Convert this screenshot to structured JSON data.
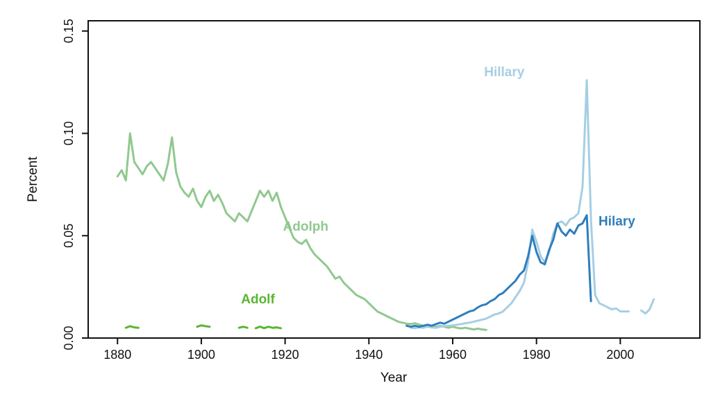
{
  "figure": {
    "background": "#ffffff",
    "axis_color": "#111111"
  },
  "chart_data": {
    "type": "line",
    "title": "",
    "xlabel": "Year",
    "ylabel": "Percent",
    "xlim": [
      1873,
      2019
    ],
    "ylim": [
      0,
      0.155
    ],
    "grid": false,
    "legend_position": "inline-annotations",
    "x_ticks": [
      {
        "v": 1880,
        "label": "1880"
      },
      {
        "v": 1900,
        "label": "1900"
      },
      {
        "v": 1920,
        "label": "1920"
      },
      {
        "v": 1940,
        "label": "1940"
      },
      {
        "v": 1960,
        "label": "1960"
      },
      {
        "v": 1980,
        "label": "1980"
      },
      {
        "v": 2000,
        "label": "2000"
      }
    ],
    "y_ticks": [
      {
        "v": 0.0,
        "label": "0.00"
      },
      {
        "v": 0.05,
        "label": "0.05"
      },
      {
        "v": 0.1,
        "label": "0.10"
      },
      {
        "v": 0.15,
        "label": "0.15"
      }
    ],
    "series": [
      {
        "name": "Adolph",
        "color": "#90c88f",
        "width": 3,
        "segments": [
          [
            [
              1880,
              0.079
            ],
            [
              1881,
              0.082
            ],
            [
              1882,
              0.077
            ],
            [
              1883,
              0.1
            ],
            [
              1884,
              0.086
            ],
            [
              1885,
              0.083
            ],
            [
              1886,
              0.08
            ],
            [
              1887,
              0.084
            ],
            [
              1888,
              0.086
            ],
            [
              1889,
              0.083
            ],
            [
              1890,
              0.08
            ],
            [
              1891,
              0.077
            ],
            [
              1892,
              0.085
            ],
            [
              1893,
              0.098
            ],
            [
              1894,
              0.081
            ],
            [
              1895,
              0.074
            ],
            [
              1896,
              0.071
            ],
            [
              1897,
              0.069
            ],
            [
              1898,
              0.073
            ],
            [
              1899,
              0.067
            ],
            [
              1900,
              0.064
            ],
            [
              1901,
              0.069
            ],
            [
              1902,
              0.072
            ],
            [
              1903,
              0.067
            ],
            [
              1904,
              0.07
            ],
            [
              1905,
              0.066
            ],
            [
              1906,
              0.061
            ],
            [
              1907,
              0.059
            ],
            [
              1908,
              0.057
            ],
            [
              1909,
              0.061
            ],
            [
              1910,
              0.059
            ],
            [
              1911,
              0.057
            ],
            [
              1912,
              0.062
            ],
            [
              1913,
              0.067
            ],
            [
              1914,
              0.072
            ],
            [
              1915,
              0.069
            ],
            [
              1916,
              0.072
            ],
            [
              1917,
              0.067
            ],
            [
              1918,
              0.071
            ],
            [
              1919,
              0.064
            ],
            [
              1920,
              0.059
            ],
            [
              1921,
              0.054
            ],
            [
              1922,
              0.049
            ],
            [
              1923,
              0.047
            ],
            [
              1924,
              0.046
            ],
            [
              1925,
              0.048
            ],
            [
              1926,
              0.044
            ],
            [
              1927,
              0.041
            ],
            [
              1928,
              0.039
            ],
            [
              1929,
              0.037
            ],
            [
              1930,
              0.035
            ],
            [
              1931,
              0.032
            ],
            [
              1932,
              0.029
            ],
            [
              1933,
              0.03
            ],
            [
              1934,
              0.027
            ],
            [
              1935,
              0.025
            ],
            [
              1936,
              0.023
            ],
            [
              1937,
              0.021
            ],
            [
              1938,
              0.02
            ],
            [
              1939,
              0.019
            ],
            [
              1940,
              0.017
            ],
            [
              1941,
              0.015
            ],
            [
              1942,
              0.013
            ],
            [
              1943,
              0.012
            ],
            [
              1944,
              0.011
            ],
            [
              1945,
              0.01
            ],
            [
              1946,
              0.009
            ],
            [
              1947,
              0.008
            ],
            [
              1948,
              0.0075
            ],
            [
              1949,
              0.007
            ],
            [
              1950,
              0.0068
            ],
            [
              1951,
              0.0072
            ],
            [
              1952,
              0.0066
            ],
            [
              1953,
              0.006
            ],
            [
              1954,
              0.0065
            ],
            [
              1955,
              0.006
            ],
            [
              1956,
              0.0055
            ],
            [
              1957,
              0.006
            ],
            [
              1958,
              0.0055
            ],
            [
              1959,
              0.005
            ],
            [
              1960,
              0.0055
            ],
            [
              1961,
              0.005
            ],
            [
              1962,
              0.0047
            ],
            [
              1963,
              0.005
            ],
            [
              1964,
              0.0046
            ],
            [
              1965,
              0.0042
            ],
            [
              1966,
              0.0046
            ],
            [
              1967,
              0.0042
            ],
            [
              1968,
              0.004
            ]
          ]
        ]
      },
      {
        "name": "Adolf",
        "color": "#5ab532",
        "width": 3,
        "segments": [
          [
            [
              1882,
              0.005
            ],
            [
              1883,
              0.0058
            ],
            [
              1884,
              0.0052
            ],
            [
              1885,
              0.005
            ]
          ],
          [
            [
              1899,
              0.0055
            ],
            [
              1900,
              0.0062
            ],
            [
              1901,
              0.0058
            ],
            [
              1902,
              0.0055
            ]
          ],
          [
            [
              1909,
              0.005
            ],
            [
              1910,
              0.0055
            ],
            [
              1911,
              0.005
            ]
          ],
          [
            [
              1913,
              0.0048
            ],
            [
              1914,
              0.0056
            ],
            [
              1915,
              0.0048
            ],
            [
              1916,
              0.0055
            ],
            [
              1917,
              0.005
            ],
            [
              1918,
              0.0052
            ],
            [
              1919,
              0.0048
            ]
          ]
        ]
      },
      {
        "name": "Hillary",
        "color": "#a6cee3",
        "width": 3,
        "segments": [
          [
            [
              1950,
              0.005
            ],
            [
              1951,
              0.0048
            ],
            [
              1952,
              0.0052
            ],
            [
              1953,
              0.005
            ],
            [
              1954,
              0.0055
            ],
            [
              1955,
              0.0052
            ],
            [
              1956,
              0.005
            ],
            [
              1957,
              0.0055
            ],
            [
              1958,
              0.0058
            ],
            [
              1959,
              0.006
            ],
            [
              1960,
              0.0062
            ],
            [
              1961,
              0.0065
            ],
            [
              1962,
              0.0068
            ],
            [
              1963,
              0.0072
            ],
            [
              1964,
              0.0075
            ],
            [
              1965,
              0.008
            ],
            [
              1966,
              0.0085
            ],
            [
              1967,
              0.009
            ],
            [
              1968,
              0.0095
            ],
            [
              1969,
              0.0105
            ],
            [
              1970,
              0.0115
            ],
            [
              1971,
              0.012
            ],
            [
              1972,
              0.013
            ],
            [
              1973,
              0.015
            ],
            [
              1974,
              0.017
            ],
            [
              1975,
              0.02
            ],
            [
              1976,
              0.023
            ],
            [
              1977,
              0.027
            ],
            [
              1978,
              0.037
            ],
            [
              1979,
              0.053
            ],
            [
              1980,
              0.047
            ],
            [
              1981,
              0.04
            ],
            [
              1982,
              0.037
            ],
            [
              1983,
              0.042
            ],
            [
              1984,
              0.051
            ],
            [
              1985,
              0.056
            ],
            [
              1986,
              0.057
            ],
            [
              1987,
              0.055
            ],
            [
              1988,
              0.058
            ],
            [
              1989,
              0.059
            ],
            [
              1990,
              0.061
            ],
            [
              1991,
              0.074
            ],
            [
              1992,
              0.126
            ],
            [
              1993,
              0.058
            ],
            [
              1994,
              0.021
            ],
            [
              1995,
              0.017
            ],
            [
              1996,
              0.016
            ],
            [
              1997,
              0.015
            ],
            [
              1998,
              0.014
            ],
            [
              1999,
              0.0145
            ],
            [
              2000,
              0.013
            ],
            [
              2001,
              0.013
            ],
            [
              2002,
              0.013
            ]
          ],
          [
            [
              2005,
              0.0135
            ],
            [
              2006,
              0.012
            ],
            [
              2007,
              0.014
            ],
            [
              2008,
              0.019
            ]
          ]
        ]
      },
      {
        "name": "Hilary",
        "color": "#2e7ebc",
        "width": 3,
        "segments": [
          [
            [
              1949,
              0.006
            ],
            [
              1950,
              0.0055
            ],
            [
              1951,
              0.006
            ],
            [
              1952,
              0.0055
            ],
            [
              1953,
              0.006
            ],
            [
              1954,
              0.0065
            ],
            [
              1955,
              0.006
            ],
            [
              1956,
              0.0068
            ],
            [
              1957,
              0.0075
            ],
            [
              1958,
              0.007
            ],
            [
              1959,
              0.008
            ],
            [
              1960,
              0.009
            ],
            [
              1961,
              0.01
            ],
            [
              1962,
              0.011
            ],
            [
              1963,
              0.012
            ],
            [
              1964,
              0.013
            ],
            [
              1965,
              0.0135
            ],
            [
              1966,
              0.015
            ],
            [
              1967,
              0.016
            ],
            [
              1968,
              0.0165
            ],
            [
              1969,
              0.018
            ],
            [
              1970,
              0.019
            ],
            [
              1971,
              0.021
            ],
            [
              1972,
              0.022
            ],
            [
              1973,
              0.024
            ],
            [
              1974,
              0.026
            ],
            [
              1975,
              0.028
            ],
            [
              1976,
              0.031
            ],
            [
              1977,
              0.033
            ],
            [
              1978,
              0.04
            ],
            [
              1979,
              0.05
            ],
            [
              1980,
              0.042
            ],
            [
              1981,
              0.037
            ],
            [
              1982,
              0.036
            ],
            [
              1983,
              0.043
            ],
            [
              1984,
              0.048
            ],
            [
              1985,
              0.056
            ],
            [
              1986,
              0.052
            ],
            [
              1987,
              0.05
            ],
            [
              1988,
              0.053
            ],
            [
              1989,
              0.051
            ],
            [
              1990,
              0.055
            ],
            [
              1991,
              0.056
            ],
            [
              1992,
              0.06
            ],
            [
              1993,
              0.018
            ]
          ]
        ]
      }
    ],
    "annotations": [
      {
        "text": "Hillary",
        "year": 1967.5,
        "pct": 0.13,
        "color": "#a6cee3",
        "anchor": "start"
      },
      {
        "text": "Hilary",
        "year": 1994.8,
        "pct": 0.057,
        "color": "#2e7ebc",
        "anchor": "start"
      },
      {
        "text": "Adolph",
        "year": 1919.5,
        "pct": 0.0545,
        "color": "#90c88f",
        "anchor": "start"
      },
      {
        "text": "Adolf",
        "year": 1909.5,
        "pct": 0.019,
        "color": "#5ab532",
        "anchor": "start"
      }
    ]
  }
}
